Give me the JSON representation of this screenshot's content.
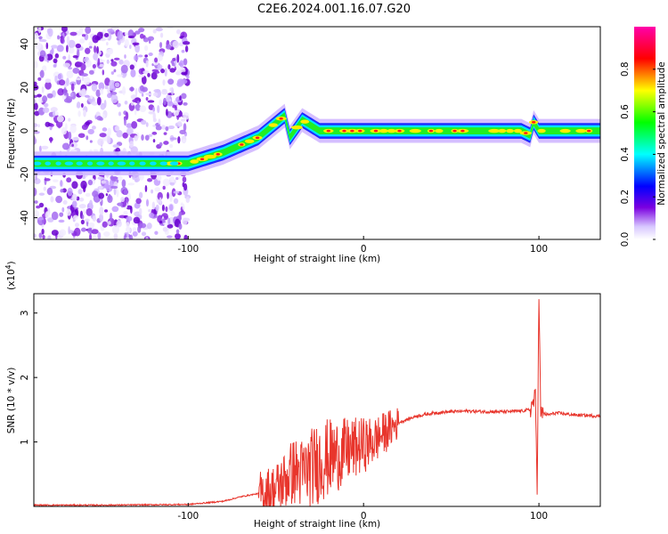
{
  "title": "C2E6.2024.001.16.07.G20",
  "colors": {
    "snr_line": "#e8352c",
    "frame": "#000000",
    "background": "#ffffff"
  },
  "chart_data": [
    {
      "type": "heatmap",
      "xlabel": "Height of straight line (km)",
      "ylabel": "Frequency (Hz)",
      "xlim": [
        -188,
        135
      ],
      "ylim": [
        -50,
        48
      ],
      "xticks": [
        -100,
        0,
        100
      ],
      "xtick_labels": [
        "-100",
        "0",
        "100"
      ],
      "yticks": [
        -40,
        -20,
        0,
        20,
        40
      ],
      "ytick_labels": [
        "-40",
        "-20",
        "0",
        "20",
        "40"
      ],
      "colorbar": {
        "label": "Normalized spectral amplitude",
        "range": [
          0,
          1
        ],
        "ticks": [
          0.0,
          0.2,
          0.4,
          0.6,
          0.8
        ],
        "tick_labels": [
          "0.0",
          "0.2",
          "0.4",
          "0.6",
          "0.8"
        ],
        "colormap": "rainbow (white-violet-blue-cyan-green-yellow-red-magenta)"
      },
      "ridge": [
        {
          "x": -188,
          "y": -15
        },
        {
          "x": -100,
          "y": -15
        },
        {
          "x": -80,
          "y": -10
        },
        {
          "x": -60,
          "y": -3
        },
        {
          "x": -45,
          "y": 7
        },
        {
          "x": -42,
          "y": -3
        },
        {
          "x": -35,
          "y": 5
        },
        {
          "x": -25,
          "y": 0
        },
        {
          "x": -10,
          "y": 0
        },
        {
          "x": 20,
          "y": 0
        },
        {
          "x": 90,
          "y": 0
        },
        {
          "x": 95,
          "y": -2
        },
        {
          "x": 97,
          "y": 4
        },
        {
          "x": 100,
          "y": 0
        },
        {
          "x": 135,
          "y": 0
        }
      ]
    },
    {
      "type": "line",
      "xlabel": "Height of straight line (km)",
      "ylabel": "SNR (10 * v/v)",
      "y_multiplier": "(x10^4)",
      "y_multiplier_base": "(x10",
      "y_multiplier_exp": "4",
      "y_multiplier_close": ")",
      "xlim": [
        -188,
        135
      ],
      "ylim": [
        0,
        3.3
      ],
      "xticks": [
        -100,
        0,
        100
      ],
      "xtick_labels": [
        "-100",
        "0",
        "100"
      ],
      "yticks": [
        1,
        2,
        3
      ],
      "ytick_labels": [
        "1",
        "2",
        "3"
      ],
      "series": [
        {
          "x": [
            -188,
            -150,
            -100,
            -80,
            -70,
            -60,
            -50,
            -45,
            -40,
            -35,
            -30,
            -25,
            -20,
            -15,
            -10,
            -5,
            0,
            5,
            10,
            15,
            20,
            25,
            30,
            40,
            50,
            60,
            70,
            80,
            90,
            95,
            98,
            99,
            100,
            101,
            102,
            105,
            110,
            120,
            135
          ],
          "y": [
            0.02,
            0.02,
            0.03,
            0.08,
            0.15,
            0.2,
            0.25,
            0.4,
            0.55,
            0.5,
            0.6,
            0.7,
            0.75,
            0.8,
            0.85,
            0.9,
            0.95,
            1.0,
            1.1,
            1.2,
            1.3,
            1.35,
            1.4,
            1.45,
            1.47,
            1.48,
            1.47,
            1.47,
            1.48,
            1.5,
            1.7,
            0.3,
            3.3,
            1.4,
            1.45,
            1.42,
            1.45,
            1.42,
            1.4
          ]
        }
      ]
    }
  ]
}
